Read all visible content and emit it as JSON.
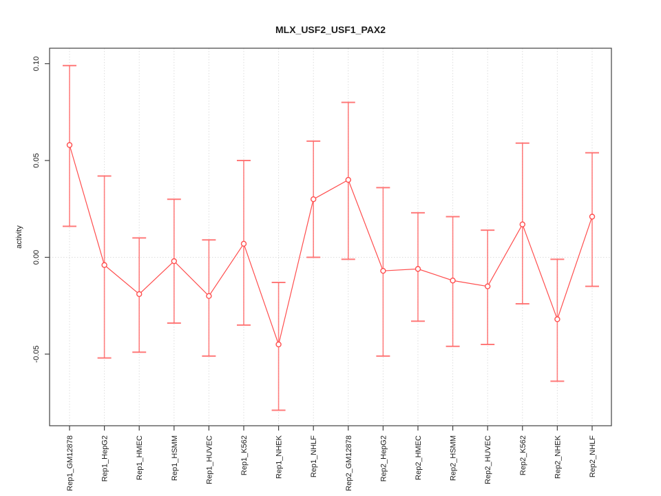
{
  "figure": {
    "title": "MLX_USF2_USF1_PAX2",
    "ylabel": "activity",
    "xlabel": ""
  },
  "chart_data": {
    "type": "line",
    "title": "MLX_USF2_USF1_PAX2",
    "xlabel": "",
    "ylabel": "activity",
    "legend": "none",
    "grid": "vertical dotted gridline per category; dotted horizontal line at 0",
    "point_style": "open-circle",
    "error_bars": true,
    "categories": [
      "Rep1_GM12878",
      "Rep1_HepG2",
      "Rep1_HMEC",
      "Rep1_HSMM",
      "Rep1_HUVEC",
      "Rep1_K562",
      "Rep1_NHEK",
      "Rep1_NHLF",
      "Rep2_GM12878",
      "Rep2_HepG2",
      "Rep2_HMEC",
      "Rep2_HSMM",
      "Rep2_HUVEC",
      "Rep2_K562",
      "Rep2_NHEK",
      "Rep2_NHLF"
    ],
    "series": [
      {
        "name": "activity",
        "values": [
          0.058,
          -0.004,
          -0.019,
          -0.002,
          -0.02,
          0.007,
          -0.045,
          0.03,
          0.04,
          -0.007,
          -0.006,
          -0.012,
          -0.015,
          0.017,
          -0.032,
          0.021
        ],
        "lower": [
          0.016,
          -0.052,
          -0.049,
          -0.034,
          -0.051,
          -0.035,
          -0.079,
          0.0,
          -0.001,
          -0.051,
          -0.033,
          -0.046,
          -0.045,
          -0.024,
          -0.064,
          -0.015
        ],
        "upper": [
          0.099,
          0.042,
          0.01,
          0.03,
          0.009,
          0.05,
          -0.013,
          0.06,
          0.08,
          0.036,
          0.023,
          0.021,
          0.014,
          0.059,
          -0.001,
          0.054
        ]
      }
    ],
    "ylim": [
      -0.087,
      0.108
    ],
    "yticks": [
      -0.05,
      0.0,
      0.05,
      0.1
    ],
    "ytick_labels": [
      "-0.05",
      "0.00",
      "0.05",
      "0.10"
    ],
    "colors": {
      "series": "#ff4d4d",
      "error_bar": "#ff6b6b",
      "grid": "#dcdcdc",
      "axis": "#404040",
      "text": "#1a1a1a",
      "background": "#ffffff"
    }
  }
}
